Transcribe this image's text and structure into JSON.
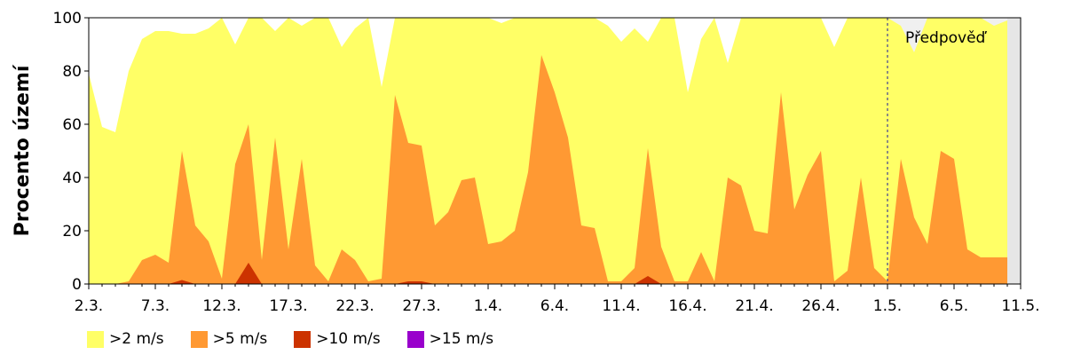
{
  "chart_data": {
    "type": "area",
    "ylabel": "Procento území",
    "ylim": [
      0,
      100
    ],
    "yticks": [
      0,
      20,
      40,
      60,
      80,
      100
    ],
    "x": [
      "2.3.",
      "3.3.",
      "4.3.",
      "5.3.",
      "6.3.",
      "7.3.",
      "8.3.",
      "9.3.",
      "10.3.",
      "11.3.",
      "12.3.",
      "13.3.",
      "14.3.",
      "15.3.",
      "16.3.",
      "17.3.",
      "18.3.",
      "19.3.",
      "20.3.",
      "21.3.",
      "22.3.",
      "23.3.",
      "24.3.",
      "25.3.",
      "26.3.",
      "27.3.",
      "28.3.",
      "29.3.",
      "30.3.",
      "31.3.",
      "1.4.",
      "2.4.",
      "3.4.",
      "4.4.",
      "5.4.",
      "6.4.",
      "7.4.",
      "8.4.",
      "9.4.",
      "10.4.",
      "11.4.",
      "12.4.",
      "13.4.",
      "14.4.",
      "15.4.",
      "16.4.",
      "17.4.",
      "18.4.",
      "19.4.",
      "20.4.",
      "21.4.",
      "22.4.",
      "23.4.",
      "24.4.",
      "25.4.",
      "26.4.",
      "27.4.",
      "28.4.",
      "29.4.",
      "30.4.",
      "1.5.",
      "2.5.",
      "3.5.",
      "4.5.",
      "5.5.",
      "6.5.",
      "7.5.",
      "8.5.",
      "9.5.",
      "10.5."
    ],
    "xtick_labels": [
      "2.3.",
      "7.3.",
      "12.3.",
      "17.3.",
      "22.3.",
      "27.3.",
      "1.4.",
      "6.4.",
      "11.4.",
      "16.4.",
      "21.4.",
      "26.4.",
      "1.5.",
      "6.5.",
      "11.5."
    ],
    "x_range": [
      "2.3.",
      "11.5."
    ],
    "grid": false,
    "legend_position": "bottom-left",
    "series": [
      {
        "name": ">2 m/s",
        "color": "#ffff66",
        "values": [
          79,
          59,
          57,
          80,
          92,
          95,
          95,
          94,
          94,
          96,
          100,
          90,
          100,
          100,
          95,
          100,
          97,
          100,
          100,
          89,
          96,
          100,
          74,
          100,
          100,
          100,
          100,
          100,
          100,
          100,
          100,
          98,
          100,
          100,
          100,
          100,
          100,
          100,
          100,
          97,
          91,
          96,
          91,
          100,
          100,
          72,
          92,
          100,
          83,
          100,
          100,
          100,
          100,
          100,
          100,
          100,
          89,
          100,
          100,
          100,
          100,
          97,
          87,
          100,
          100,
          100,
          100,
          100,
          97,
          99
        ]
      },
      {
        "name": ">5 m/s",
        "color": "#ff9933",
        "values": [
          0,
          0,
          0,
          1,
          9,
          11,
          8,
          50,
          22,
          16,
          2,
          45,
          60,
          9,
          55,
          13,
          47,
          7,
          1,
          13,
          9,
          1,
          2,
          71,
          53,
          52,
          22,
          27,
          39,
          40,
          15,
          16,
          20,
          42,
          86,
          72,
          55,
          22,
          21,
          1,
          1,
          6,
          51,
          14,
          1,
          1,
          12,
          1,
          40,
          37,
          20,
          19,
          72,
          28,
          41,
          50,
          1,
          5,
          40,
          6,
          1,
          47,
          25,
          15,
          50,
          47,
          13,
          10,
          10,
          10
        ]
      },
      {
        "name": ">10 m/s",
        "color": "#cc3300",
        "values": [
          0,
          0,
          0,
          0,
          0,
          0,
          0,
          1.5,
          0,
          0,
          0,
          0,
          8,
          0,
          0,
          0,
          0,
          0,
          0,
          0,
          0,
          0,
          0,
          0,
          1,
          1,
          0,
          0,
          0,
          0,
          0,
          0,
          0,
          0,
          0,
          0,
          0,
          0,
          0,
          0,
          0,
          0,
          3,
          0,
          0,
          0,
          0,
          0,
          0,
          0,
          0,
          0,
          0,
          0,
          0,
          0,
          0,
          0,
          0,
          0,
          0,
          0,
          0,
          0,
          0,
          0,
          0,
          0,
          0,
          0
        ]
      },
      {
        "name": ">15 m/s",
        "color": "#9900cc",
        "values": [
          0,
          0,
          0,
          0,
          0,
          0,
          0,
          0,
          0,
          0,
          0,
          0,
          0,
          0,
          0,
          0,
          0,
          0,
          0,
          0,
          0,
          0,
          0,
          0,
          0,
          0,
          0,
          0,
          0,
          0,
          0,
          0,
          0,
          0,
          0,
          0,
          0,
          0,
          0,
          0,
          0,
          0,
          0,
          0,
          0,
          0,
          0,
          0,
          0,
          0,
          0,
          0,
          0,
          0,
          0,
          0,
          0,
          0,
          0,
          0,
          0,
          0,
          0,
          0,
          0,
          0,
          0,
          0,
          0,
          0
        ]
      }
    ],
    "annotations": [
      {
        "text": "Předpověď",
        "x": "1.5."
      }
    ]
  }
}
